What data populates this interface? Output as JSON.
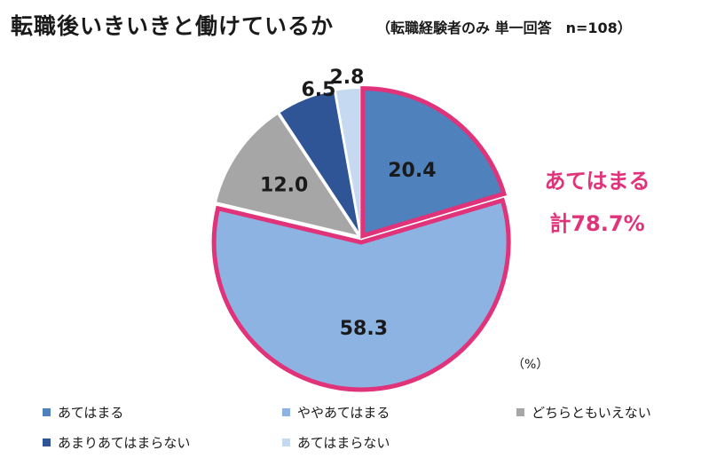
{
  "header": {
    "title": "転職後いきいきと働けているか",
    "subtitle": "（転職経験者のみ 単一回答　n=108）"
  },
  "callout": {
    "line1": "あてはまる",
    "line2": "計78.7%",
    "color": "#e0337a"
  },
  "unit_label": "（%）",
  "chart_data": {
    "type": "pie",
    "title": "転職後いきいきと働けているか",
    "subtitle": "（転職経験者のみ 単一回答　n=108）",
    "unit": "%",
    "start": "12 o'clock, clockwise",
    "legend_position": "bottom",
    "slices": [
      {
        "label": "あてはまる",
        "value": 20.4,
        "color": "#4f81bd"
      },
      {
        "label": "ややあてはまる",
        "value": 58.3,
        "color": "#8db3e2"
      },
      {
        "label": "どちらともいえない",
        "value": 12.0,
        "color": "#a6a6a6"
      },
      {
        "label": "あまりあてはまらない",
        "value": 6.5,
        "color": "#2f5597"
      },
      {
        "label": "あてはまらない",
        "value": 2.8,
        "color": "#c5d9f1"
      }
    ],
    "highlight": {
      "slices": [
        0,
        1
      ],
      "total_label": "計78.7%",
      "outline_color": "#e0337a"
    }
  }
}
